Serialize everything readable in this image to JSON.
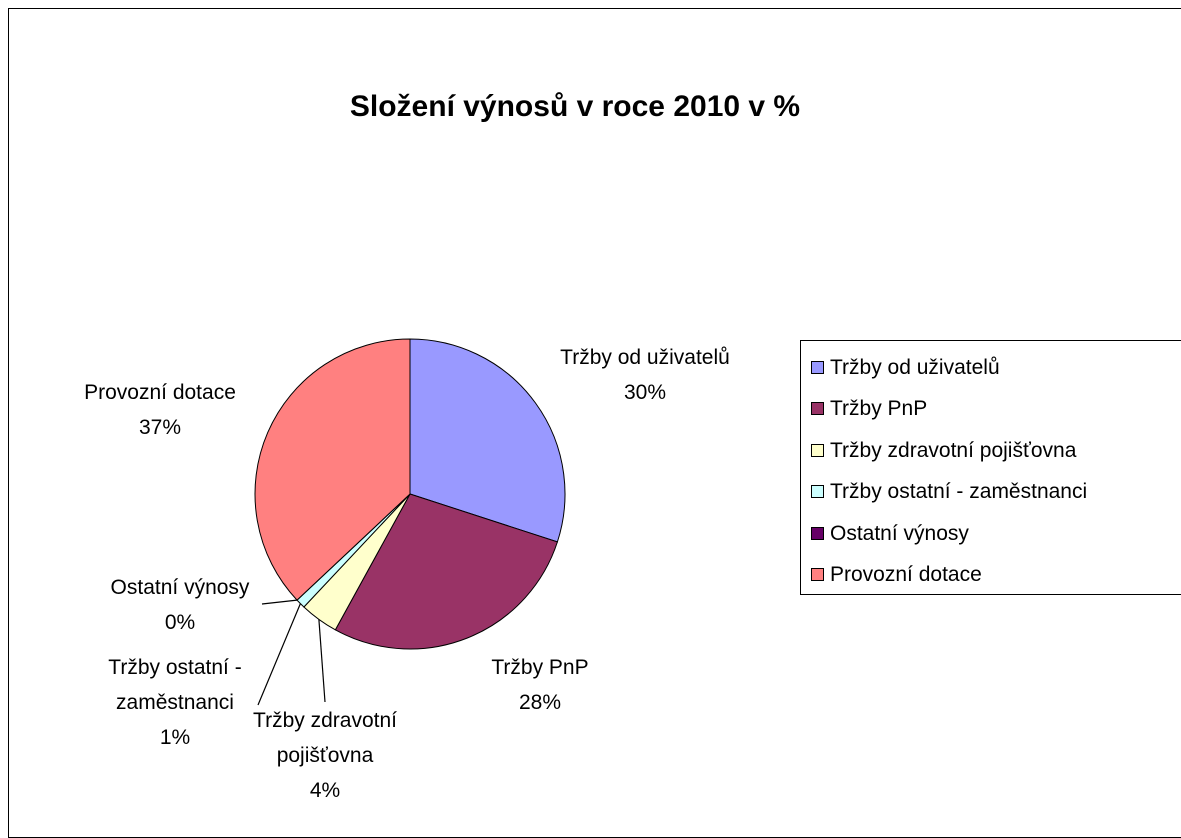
{
  "chart_data": {
    "type": "pie",
    "title": "Složení výnosů v roce 2010 v %",
    "categories": [
      "Tržby od uživatelů",
      "Tržby PnP",
      "Tržby zdravotní pojišťovna",
      "Tržby ostatní - zaměstnanci",
      "Ostatní výnosy",
      "Provozní dotace"
    ],
    "values": [
      30,
      28,
      4,
      1,
      0,
      37
    ],
    "value_labels": [
      "30%",
      "28%",
      "4%",
      "1%",
      "0%",
      "37%"
    ],
    "colors": [
      "#9999ff",
      "#993366",
      "#ffffcc",
      "#ccffff",
      "#660066",
      "#ff8080"
    ],
    "legend": "right"
  }
}
